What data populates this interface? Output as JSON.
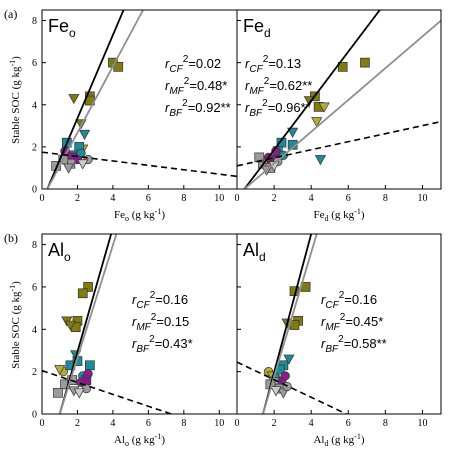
{
  "figure": {
    "row_labels": [
      "(a)",
      "(b)"
    ],
    "y_axis_label": "Stable SOC (g kg",
    "y_axis_label_sup": "-1",
    "y_axis_label_end": ")"
  },
  "colors": {
    "olive": "#807a10",
    "olive_light": "#b4ae36",
    "teal": "#1d8c98",
    "purple": "#8a1d8c",
    "gray": "#9c9c9c",
    "lightgray": "#cccccc",
    "line_black": "#000000",
    "line_gray": "#8f8f8f"
  },
  "chart_data": [
    {
      "type": "scatter",
      "title": "Feo",
      "title_main": "Fe",
      "title_sub": "o",
      "xlabel_main": "Fe",
      "xlabel_sub": "o",
      "xlabel_unit": " (g kg",
      "xlabel_sup": "-1",
      "xlabel_end": ")",
      "xlim": [
        0,
        11
      ],
      "ylim": [
        0,
        8.5
      ],
      "xticks": [
        0,
        2,
        4,
        6,
        8,
        10
      ],
      "yticks": [
        0,
        2,
        4,
        6,
        8
      ],
      "annotations": [
        {
          "r": "r",
          "sub": "CF",
          "sup": "2",
          "value": "=0.02"
        },
        {
          "r": "r",
          "sub": "MF",
          "sup": "2",
          "value": "=0.48*"
        },
        {
          "r": "r",
          "sub": "BF",
          "sup": "2",
          "value": "=0.92**"
        }
      ],
      "lines": [
        {
          "style": "black",
          "x": [
            0.3,
            4.6
          ],
          "y": [
            0.0,
            8.5
          ]
        },
        {
          "style": "gray",
          "x": [
            0.3,
            5.7
          ],
          "y": [
            0.0,
            8.5
          ]
        },
        {
          "style": "dashed",
          "x": [
            0,
            11
          ],
          "y": [
            1.75,
            0.6
          ]
        }
      ],
      "points": [
        {
          "x": 4.0,
          "y": 6.0,
          "m": "square",
          "c": "olive"
        },
        {
          "x": 4.3,
          "y": 5.8,
          "m": "square",
          "c": "olive"
        },
        {
          "x": 2.7,
          "y": 4.4,
          "m": "square",
          "c": "olive"
        },
        {
          "x": 2.7,
          "y": 4.2,
          "m": "square",
          "c": "olive"
        },
        {
          "x": 1.8,
          "y": 4.3,
          "m": "triangle",
          "c": "olive"
        },
        {
          "x": 2.2,
          "y": 3.1,
          "m": "triangle",
          "c": "olive"
        },
        {
          "x": 2.3,
          "y": 1.9,
          "m": "triangle",
          "c": "olive_light"
        },
        {
          "x": 1.4,
          "y": 2.2,
          "m": "square",
          "c": "teal"
        },
        {
          "x": 2.1,
          "y": 2.0,
          "m": "square",
          "c": "teal"
        },
        {
          "x": 1.8,
          "y": 1.6,
          "m": "square",
          "c": "teal"
        },
        {
          "x": 2.4,
          "y": 2.6,
          "m": "triangle",
          "c": "teal"
        },
        {
          "x": 2.2,
          "y": 1.7,
          "m": "circle",
          "c": "teal"
        },
        {
          "x": 1.7,
          "y": 1.5,
          "m": "square",
          "c": "purple"
        },
        {
          "x": 2.0,
          "y": 1.4,
          "m": "circle",
          "c": "purple"
        },
        {
          "x": 1.3,
          "y": 1.8,
          "m": "circle",
          "c": "purple"
        },
        {
          "x": 1.6,
          "y": 1.2,
          "m": "square",
          "c": "gray"
        },
        {
          "x": 1.2,
          "y": 1.4,
          "m": "square",
          "c": "gray"
        },
        {
          "x": 0.8,
          "y": 1.1,
          "m": "square",
          "c": "gray"
        },
        {
          "x": 1.5,
          "y": 1.0,
          "m": "triangle",
          "c": "gray"
        },
        {
          "x": 2.6,
          "y": 1.4,
          "m": "circle",
          "c": "gray"
        },
        {
          "x": 2.3,
          "y": 1.2,
          "m": "triangle",
          "c": "lightgray"
        }
      ]
    },
    {
      "type": "scatter",
      "title": "Fed",
      "title_main": "Fe",
      "title_sub": "d",
      "xlabel_main": "Fe",
      "xlabel_sub": "d",
      "xlabel_unit": " (g kg",
      "xlabel_sup": "-1",
      "xlabel_end": ")",
      "xlim": [
        0,
        11
      ],
      "ylim": [
        0,
        8.5
      ],
      "xticks": [
        0,
        2,
        4,
        6,
        8,
        10
      ],
      "yticks": [
        0,
        2,
        4,
        6,
        8
      ],
      "annotations": [
        {
          "r": "r",
          "sub": "CF",
          "sup": "2",
          "value": "=0.13"
        },
        {
          "r": "r",
          "sub": "MF",
          "sup": "2",
          "value": "=0.62**"
        },
        {
          "r": "r",
          "sub": "BF",
          "sup": "2",
          "value": "=0.96**"
        }
      ],
      "lines": [
        {
          "style": "black",
          "x": [
            0.4,
            7.7
          ],
          "y": [
            0.0,
            8.5
          ]
        },
        {
          "style": "gray",
          "x": [
            0.4,
            11.0
          ],
          "y": [
            0.0,
            8.0
          ]
        },
        {
          "style": "dashed",
          "x": [
            0,
            11
          ],
          "y": [
            1.1,
            3.2
          ]
        }
      ],
      "points": [
        {
          "x": 5.7,
          "y": 5.8,
          "m": "square",
          "c": "olive"
        },
        {
          "x": 6.9,
          "y": 6.0,
          "m": "square",
          "c": "olive"
        },
        {
          "x": 4.2,
          "y": 4.4,
          "m": "square",
          "c": "olive"
        },
        {
          "x": 4.4,
          "y": 3.9,
          "m": "square",
          "c": "olive"
        },
        {
          "x": 3.9,
          "y": 4.2,
          "m": "triangle",
          "c": "olive"
        },
        {
          "x": 4.7,
          "y": 3.9,
          "m": "triangle",
          "c": "olive_light"
        },
        {
          "x": 4.3,
          "y": 3.2,
          "m": "triangle",
          "c": "olive_light"
        },
        {
          "x": 4.5,
          "y": 1.4,
          "m": "triangle",
          "c": "teal"
        },
        {
          "x": 2.4,
          "y": 2.2,
          "m": "square",
          "c": "teal"
        },
        {
          "x": 3.0,
          "y": 2.1,
          "m": "square",
          "c": "teal"
        },
        {
          "x": 2.2,
          "y": 1.8,
          "m": "square",
          "c": "teal"
        },
        {
          "x": 3.0,
          "y": 2.7,
          "m": "triangle",
          "c": "teal"
        },
        {
          "x": 2.5,
          "y": 1.6,
          "m": "circle",
          "c": "teal"
        },
        {
          "x": 1.9,
          "y": 1.4,
          "m": "square",
          "c": "purple"
        },
        {
          "x": 2.1,
          "y": 1.8,
          "m": "circle",
          "c": "purple"
        },
        {
          "x": 1.7,
          "y": 1.5,
          "m": "circle",
          "c": "purple"
        },
        {
          "x": 1.4,
          "y": 1.2,
          "m": "square",
          "c": "gray"
        },
        {
          "x": 1.8,
          "y": 1.0,
          "m": "square",
          "c": "gray"
        },
        {
          "x": 1.2,
          "y": 1.5,
          "m": "square",
          "c": "gray"
        },
        {
          "x": 1.6,
          "y": 0.9,
          "m": "triangle",
          "c": "gray"
        },
        {
          "x": 2.2,
          "y": 1.3,
          "m": "circle",
          "c": "gray"
        },
        {
          "x": 2.0,
          "y": 1.1,
          "m": "triangle",
          "c": "lightgray"
        }
      ]
    },
    {
      "type": "scatter",
      "title": "Alo",
      "title_main": "Al",
      "title_sub": "o",
      "xlabel_main": "Al",
      "xlabel_sub": "o",
      "xlabel_unit": " (g kg",
      "xlabel_sup": "-1",
      "xlabel_end": ")",
      "xlim": [
        0,
        11
      ],
      "ylim": [
        0,
        8.5
      ],
      "xticks": [
        0,
        2,
        4,
        6,
        8,
        10
      ],
      "yticks": [
        0,
        2,
        4,
        6,
        8
      ],
      "annotations": [
        {
          "r": "r",
          "sub": "CF",
          "sup": "2",
          "value": "=0.16"
        },
        {
          "r": "r",
          "sub": "MF",
          "sup": "2",
          "value": "=0.15"
        },
        {
          "r": "r",
          "sub": "BF",
          "sup": "2",
          "value": "=0.43*"
        }
      ],
      "lines": [
        {
          "style": "black",
          "x": [
            1.0,
            3.9
          ],
          "y": [
            0.0,
            8.5
          ]
        },
        {
          "style": "gray",
          "x": [
            1.0,
            4.2
          ],
          "y": [
            0.0,
            8.5
          ]
        },
        {
          "style": "dashed",
          "x": [
            0,
            7.3
          ],
          "y": [
            2.05,
            0.0
          ]
        }
      ],
      "points": [
        {
          "x": 2.6,
          "y": 6.0,
          "m": "square",
          "c": "olive"
        },
        {
          "x": 2.3,
          "y": 5.7,
          "m": "square",
          "c": "olive"
        },
        {
          "x": 2.0,
          "y": 4.4,
          "m": "square",
          "c": "olive"
        },
        {
          "x": 1.9,
          "y": 4.1,
          "m": "square",
          "c": "olive"
        },
        {
          "x": 1.4,
          "y": 4.4,
          "m": "triangle",
          "c": "olive"
        },
        {
          "x": 1.6,
          "y": 4.2,
          "m": "triangle",
          "c": "olive"
        },
        {
          "x": 1.2,
          "y": 2.0,
          "m": "circle",
          "c": "olive_light"
        },
        {
          "x": 1.0,
          "y": 2.1,
          "m": "triangle",
          "c": "olive_light"
        },
        {
          "x": 1.6,
          "y": 2.3,
          "m": "square",
          "c": "teal"
        },
        {
          "x": 2.0,
          "y": 2.5,
          "m": "square",
          "c": "teal"
        },
        {
          "x": 2.7,
          "y": 2.3,
          "m": "square",
          "c": "teal"
        },
        {
          "x": 1.9,
          "y": 2.8,
          "m": "triangle",
          "c": "teal"
        },
        {
          "x": 2.3,
          "y": 1.8,
          "m": "circle",
          "c": "teal"
        },
        {
          "x": 2.5,
          "y": 1.6,
          "m": "square",
          "c": "purple"
        },
        {
          "x": 2.6,
          "y": 1.9,
          "m": "circle",
          "c": "purple"
        },
        {
          "x": 2.2,
          "y": 1.5,
          "m": "circle",
          "c": "purple"
        },
        {
          "x": 1.3,
          "y": 1.4,
          "m": "square",
          "c": "gray"
        },
        {
          "x": 1.7,
          "y": 1.6,
          "m": "square",
          "c": "gray"
        },
        {
          "x": 0.9,
          "y": 1.0,
          "m": "square",
          "c": "gray"
        },
        {
          "x": 1.8,
          "y": 1.1,
          "m": "triangle",
          "c": "gray"
        },
        {
          "x": 2.5,
          "y": 1.2,
          "m": "circle",
          "c": "gray"
        },
        {
          "x": 2.1,
          "y": 1.0,
          "m": "triangle",
          "c": "lightgray"
        }
      ]
    },
    {
      "type": "scatter",
      "title": "Ald",
      "title_main": "Al",
      "title_sub": "d",
      "xlabel_main": "Al",
      "xlabel_sub": "d",
      "xlabel_unit": " (g kg",
      "xlabel_sup": "-1",
      "xlabel_end": ")",
      "xlim": [
        0,
        11
      ],
      "ylim": [
        0,
        8.5
      ],
      "xticks": [
        0,
        2,
        4,
        6,
        8,
        10
      ],
      "yticks": [
        0,
        2,
        4,
        6,
        8
      ],
      "annotations": [
        {
          "r": "r",
          "sub": "CF",
          "sup": "2",
          "value": "=0.16"
        },
        {
          "r": "r",
          "sub": "MF",
          "sup": "2",
          "value": "=0.45*"
        },
        {
          "r": "r",
          "sub": "BF",
          "sup": "2",
          "value": "=0.58**"
        }
      ],
      "lines": [
        {
          "style": "black",
          "x": [
            1.4,
            4.0
          ],
          "y": [
            0.0,
            8.5
          ]
        },
        {
          "style": "gray",
          "x": [
            1.4,
            4.3
          ],
          "y": [
            0.0,
            8.5
          ]
        },
        {
          "style": "dashed",
          "x": [
            0,
            5.9
          ],
          "y": [
            2.45,
            0.0
          ]
        }
      ],
      "points": [
        {
          "x": 3.1,
          "y": 5.8,
          "m": "square",
          "c": "olive"
        },
        {
          "x": 3.7,
          "y": 6.0,
          "m": "square",
          "c": "olive"
        },
        {
          "x": 3.3,
          "y": 4.4,
          "m": "square",
          "c": "olive"
        },
        {
          "x": 3.1,
          "y": 4.2,
          "m": "square",
          "c": "olive"
        },
        {
          "x": 2.7,
          "y": 4.3,
          "m": "triangle",
          "c": "olive"
        },
        {
          "x": 1.7,
          "y": 2.0,
          "m": "circle",
          "c": "olive_light"
        },
        {
          "x": 1.9,
          "y": 1.8,
          "m": "triangle",
          "c": "olive_light"
        },
        {
          "x": 2.5,
          "y": 2.3,
          "m": "square",
          "c": "teal"
        },
        {
          "x": 2.3,
          "y": 2.1,
          "m": "square",
          "c": "teal"
        },
        {
          "x": 2.8,
          "y": 2.6,
          "m": "triangle",
          "c": "teal"
        },
        {
          "x": 2.1,
          "y": 1.7,
          "m": "circle",
          "c": "teal"
        },
        {
          "x": 2.4,
          "y": 1.5,
          "m": "square",
          "c": "purple"
        },
        {
          "x": 2.6,
          "y": 1.8,
          "m": "circle",
          "c": "purple"
        },
        {
          "x": 2.2,
          "y": 1.4,
          "m": "circle",
          "c": "purple"
        },
        {
          "x": 2.0,
          "y": 1.5,
          "m": "square",
          "c": "gray"
        },
        {
          "x": 2.3,
          "y": 1.2,
          "m": "square",
          "c": "gray"
        },
        {
          "x": 1.8,
          "y": 1.4,
          "m": "square",
          "c": "gray"
        },
        {
          "x": 2.5,
          "y": 1.0,
          "m": "triangle",
          "c": "gray"
        },
        {
          "x": 2.7,
          "y": 1.3,
          "m": "circle",
          "c": "gray"
        },
        {
          "x": 2.1,
          "y": 1.1,
          "m": "triangle",
          "c": "lightgray"
        }
      ]
    }
  ]
}
